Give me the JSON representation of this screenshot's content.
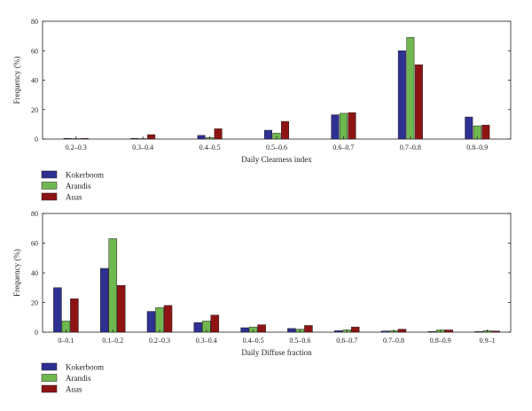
{
  "colors": {
    "Kokerboom": "#2e3192",
    "Arandis": "#6fb84f",
    "Auas": "#8e1414",
    "edge": "#231f20"
  },
  "chart_data": [
    {
      "type": "bar",
      "title": "",
      "xlabel": "Daily Clearness index",
      "ylabel": "Frequency (%)",
      "ylim": [
        0,
        80
      ],
      "yticks": [
        "0",
        "20",
        "40",
        "60",
        "80"
      ],
      "grid": false,
      "legend_position": "below-left",
      "categories": [
        "0.2–0.3",
        "0.3–0.4",
        "0.4–0.5",
        "0.5–0.6",
        "0.6–0.7",
        "0.7–0.8",
        "0.8–0.9"
      ],
      "series": [
        {
          "name": "Kokerboom",
          "values": [
            0.5,
            0.5,
            2.5,
            6,
            16.5,
            60,
            15
          ]
        },
        {
          "name": "Arandis",
          "values": [
            0.3,
            0.3,
            1,
            4,
            17.5,
            69,
            9
          ]
        },
        {
          "name": "Auas",
          "values": [
            0.5,
            3,
            7,
            12,
            18,
            50.5,
            9.5
          ]
        }
      ]
    },
    {
      "type": "bar",
      "title": "",
      "xlabel": "Daily Diffuse fraction",
      "ylabel": "Frequency (%)",
      "ylim": [
        0,
        80
      ],
      "yticks": [
        "0",
        "20",
        "40",
        "60",
        "80"
      ],
      "grid": false,
      "legend_position": "below-left",
      "categories": [
        "0–0.1",
        "0.1–0.2",
        "0.2–0.3",
        "0.3–0.4",
        "0.4–0.5",
        "0.5–0.6",
        "0.6–0.7",
        "0.7–0.8",
        "0.8–0.9",
        "0.9–1"
      ],
      "series": [
        {
          "name": "Kokerboom",
          "values": [
            30,
            43,
            14,
            6.5,
            3,
            2.5,
            1,
            0.8,
            0.5,
            0.5
          ]
        },
        {
          "name": "Arandis",
          "values": [
            7.5,
            63,
            16.5,
            7.5,
            3.5,
            2,
            1.5,
            1,
            1.5,
            1
          ]
        },
        {
          "name": "Auas",
          "values": [
            22.5,
            31.5,
            18,
            11.5,
            5,
            4.5,
            3.5,
            2,
            1.5,
            0.8
          ]
        }
      ]
    }
  ]
}
